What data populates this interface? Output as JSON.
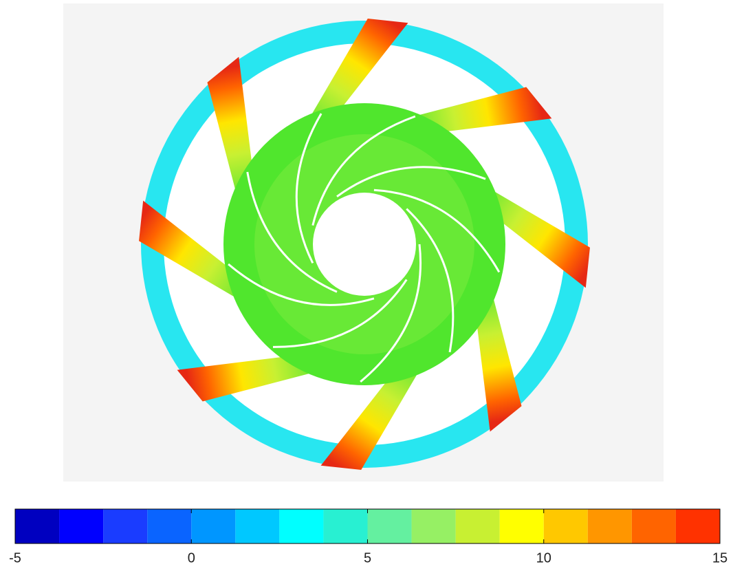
{
  "chart_data": {
    "type": "colorbar",
    "bins": [
      -5,
      -3.75,
      -2.5,
      -1.25,
      0,
      1.25,
      2.5,
      3.75,
      5,
      6.25,
      7.5,
      8.75,
      10,
      11.25,
      12.5,
      13.75,
      15
    ],
    "colors": [
      "#0000c0",
      "#0000ff",
      "#1a3cff",
      "#0a64ff",
      "#0096ff",
      "#00c8ff",
      "#00ffff",
      "#28f0d2",
      "#64f0a0",
      "#96f064",
      "#c8f032",
      "#ffff00",
      "#ffc800",
      "#ff9600",
      "#ff6400",
      "#ff3200"
    ],
    "xlim": [
      -5,
      15
    ],
    "xticks": [
      -5,
      0,
      5,
      10,
      15
    ]
  }
}
